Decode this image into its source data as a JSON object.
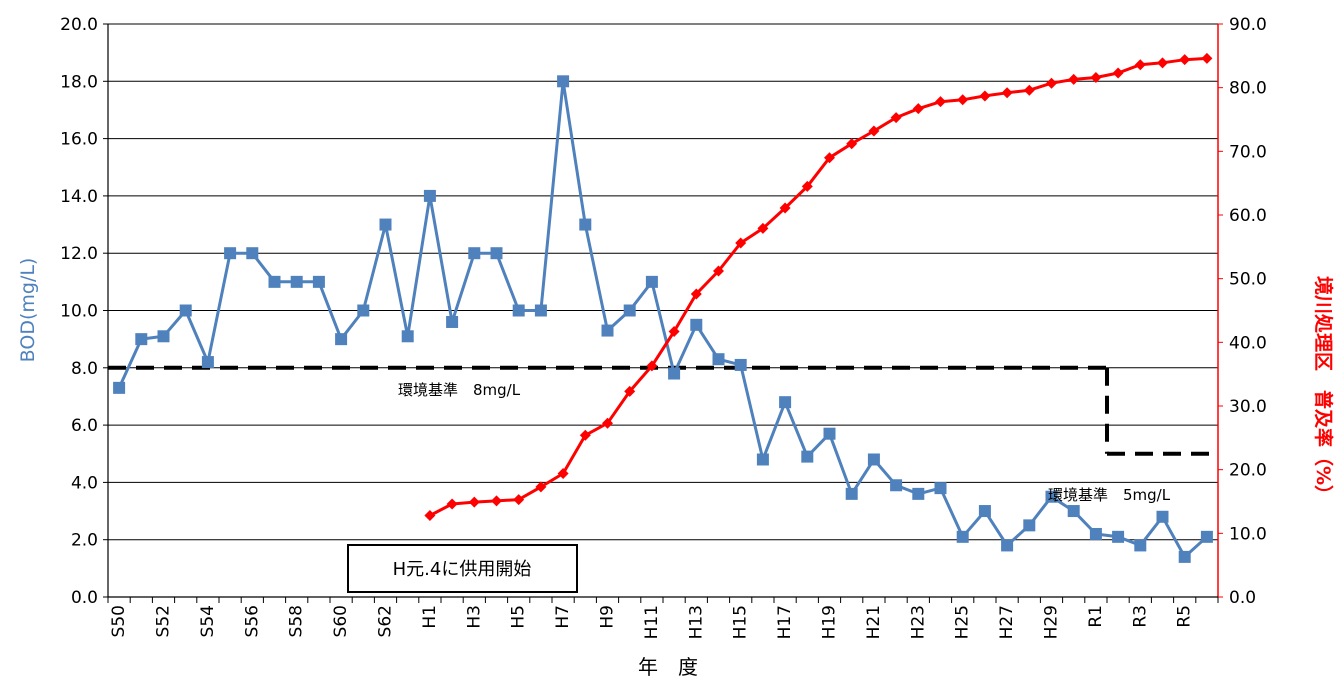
{
  "chart_data": {
    "type": "line",
    "xlabel": "年　度",
    "ylabel_left": "BOD(mg/L)",
    "ylabel_right": "境川処理区　普及率（%）",
    "yleft_lim": [
      0,
      20
    ],
    "yright_lim": [
      0,
      90
    ],
    "yleft_ticks": [
      "0.0",
      "2.0",
      "4.0",
      "6.0",
      "8.0",
      "10.0",
      "12.0",
      "14.0",
      "16.0",
      "18.0",
      "20.0"
    ],
    "yright_ticks": [
      "0.0",
      "10.0",
      "20.0",
      "30.0",
      "40.0",
      "50.0",
      "60.0",
      "70.0",
      "80.0",
      "90.0"
    ],
    "grid": true,
    "categories": [
      "S50",
      "S51",
      "S52",
      "S53",
      "S54",
      "S55",
      "S56",
      "S57",
      "S58",
      "S59",
      "S60",
      "S61",
      "S62",
      "S63",
      "H1",
      "H2",
      "H3",
      "H4",
      "H5",
      "H6",
      "H7",
      "H8",
      "H9",
      "H10",
      "H11",
      "H12",
      "H13",
      "H14",
      "H15",
      "H16",
      "H17",
      "H18",
      "H19",
      "H20",
      "H21",
      "H22",
      "H23",
      "H24",
      "H25",
      "H26",
      "H27",
      "H28",
      "H29",
      "H30",
      "R1",
      "R2",
      "R3",
      "R4",
      "R5",
      "R6"
    ],
    "tick_labels": [
      "S50",
      "S52",
      "S54",
      "S56",
      "S58",
      "S60",
      "S62",
      "H1",
      "H3",
      "H5",
      "H7",
      "H9",
      "H11",
      "H13",
      "H15",
      "H17",
      "H19",
      "H21",
      "H23",
      "H25",
      "H27",
      "H29",
      "R1",
      "R3",
      "R5"
    ],
    "series": [
      {
        "axis": "left",
        "color": "#4f81bd",
        "marker": "square",
        "values": [
          7.3,
          9.0,
          9.1,
          10.0,
          8.2,
          12.0,
          12.0,
          11.0,
          11.0,
          11.0,
          9.0,
          10.0,
          13.0,
          9.1,
          14.0,
          9.6,
          12.0,
          12.0,
          10.0,
          10.0,
          18.0,
          13.0,
          9.3,
          10.0,
          11.0,
          7.8,
          9.5,
          8.3,
          8.1,
          4.8,
          6.8,
          4.9,
          5.7,
          3.6,
          4.8,
          3.9,
          3.6,
          3.8,
          2.1,
          3.0,
          1.8,
          2.5,
          3.5,
          3.0,
          2.2,
          2.1,
          1.8,
          2.8,
          1.4,
          2.1
        ]
      },
      {
        "axis": "right",
        "color": "#ff0000",
        "marker": "diamond",
        "values": [
          null,
          null,
          null,
          null,
          null,
          null,
          null,
          null,
          null,
          null,
          null,
          null,
          null,
          null,
          12.8,
          14.6,
          14.9,
          15.1,
          15.3,
          17.3,
          19.4,
          25.4,
          27.3,
          32.3,
          36.3,
          41.7,
          47.6,
          51.2,
          55.6,
          57.9,
          61.1,
          64.5,
          69.0,
          71.2,
          73.2,
          75.3,
          76.7,
          77.8,
          78.1,
          78.7,
          79.2,
          79.6,
          80.7,
          81.3,
          81.6,
          82.3,
          83.6,
          83.9,
          84.4,
          84.6
        ]
      }
    ],
    "standard_8": {
      "value": 8,
      "label": "環境基準　8mg/L"
    },
    "standard_5": {
      "value": 5,
      "label": "環境基準　5mg/L"
    },
    "annotation": "H元.4に供用開始",
    "colors": {
      "bod": "#4f81bd",
      "coverage": "#ff0000",
      "standard": "#000000",
      "grid": "#000000"
    }
  }
}
